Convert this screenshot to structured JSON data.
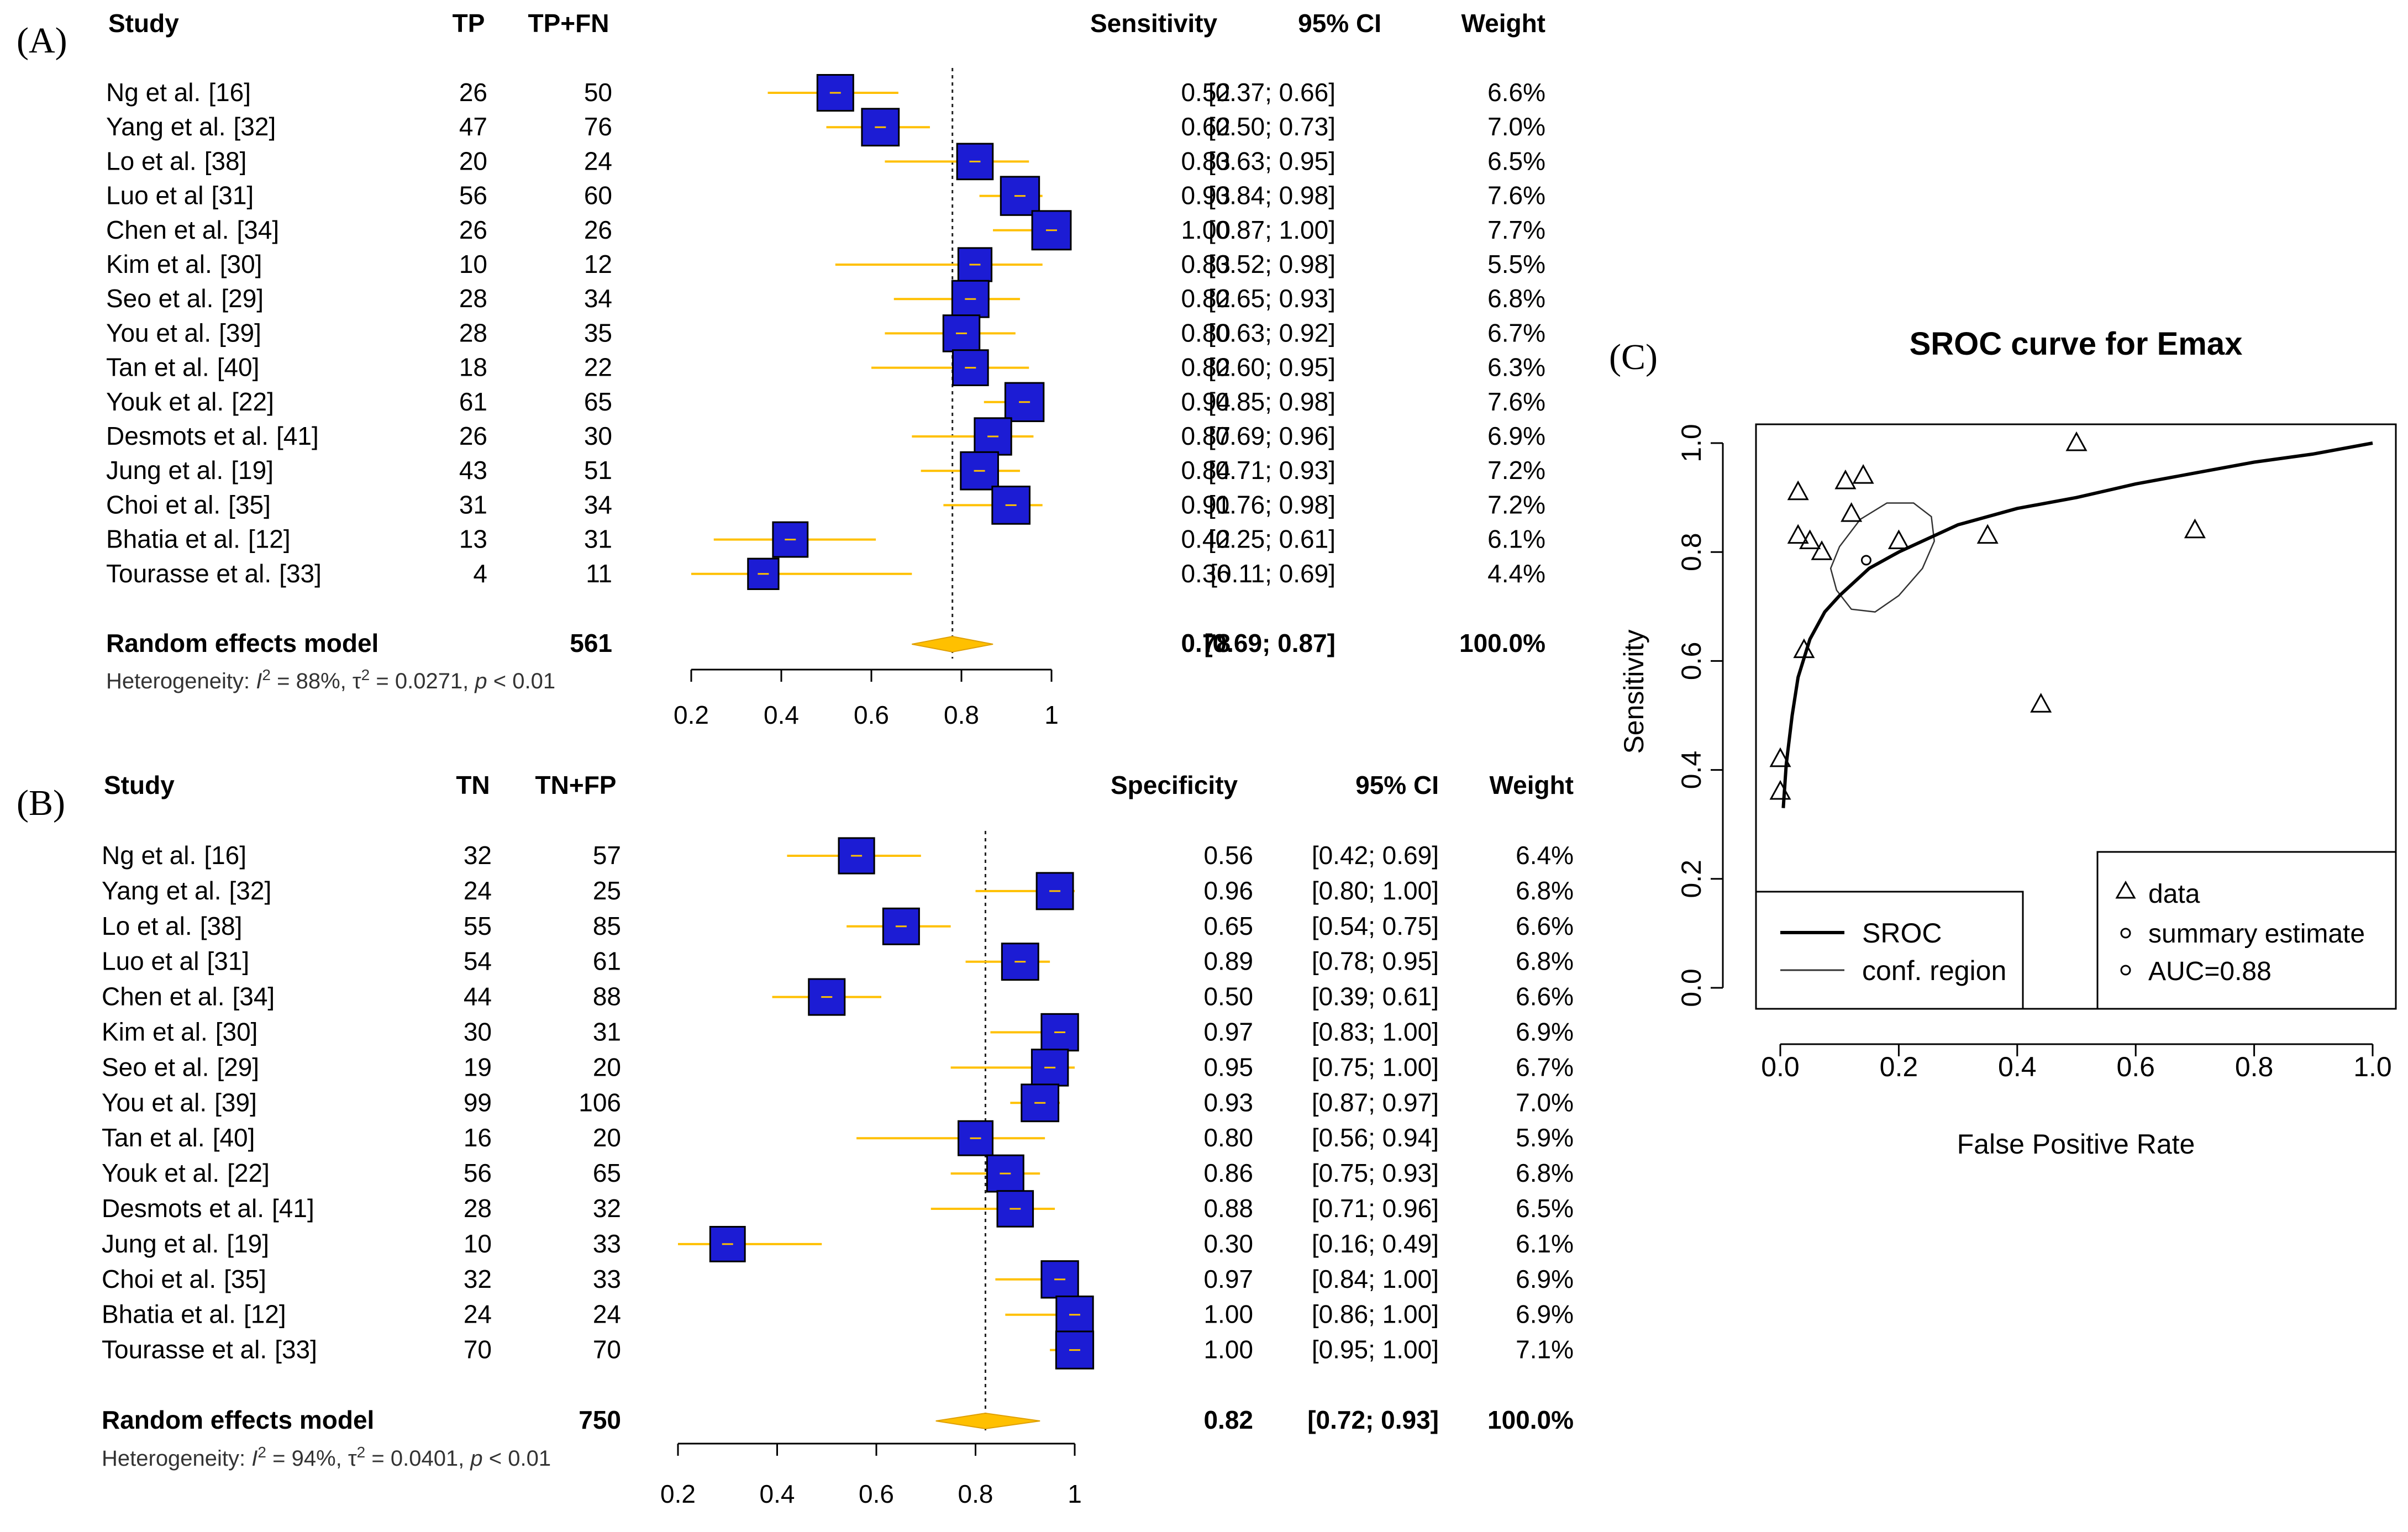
{
  "chart_data": [
    {
      "type": "forest",
      "panel_label": "(A)",
      "headers": {
        "study": "Study",
        "events": "TP",
        "total": "TP+FN",
        "measure": "Sensitivity",
        "ci": "95% CI",
        "weight": "Weight"
      },
      "xlim": [
        0.2,
        1
      ],
      "ticks": [
        0.2,
        0.4,
        0.6,
        0.8,
        1
      ],
      "tick_labels": [
        "0.2",
        "0.4",
        "0.6",
        "0.8",
        "1"
      ],
      "reference_line": 0.78,
      "studies": [
        {
          "name": "Ng et al.",
          "ref": "[16]",
          "events": "26",
          "total": "50",
          "est": "0.52",
          "lo": "0.37",
          "hi": "0.66",
          "ci": "[0.37; 0.66]",
          "weight": "6.6%"
        },
        {
          "name": "Yang et al.",
          "ref": "[32]",
          "events": "47",
          "total": "76",
          "est": "0.62",
          "lo": "0.50",
          "hi": "0.73",
          "ci": "[0.50; 0.73]",
          "weight": "7.0%"
        },
        {
          "name": "Lo et al.",
          "ref": "[38]",
          "events": "20",
          "total": "24",
          "est": "0.83",
          "lo": "0.63",
          "hi": "0.95",
          "ci": "[0.63; 0.95]",
          "weight": "6.5%"
        },
        {
          "name": "Luo et al",
          "ref": "[31]",
          "events": "56",
          "total": "60",
          "est": "0.93",
          "lo": "0.84",
          "hi": "0.98",
          "ci": "[0.84; 0.98]",
          "weight": "7.6%"
        },
        {
          "name": "Chen et al.",
          "ref": "[34]",
          "events": "26",
          "total": "26",
          "est": "1.00",
          "lo": "0.87",
          "hi": "1.00",
          "ci": "[0.87; 1.00]",
          "weight": "7.7%"
        },
        {
          "name": "Kim et al.",
          "ref": "[30]",
          "events": "10",
          "total": "12",
          "est": "0.83",
          "lo": "0.52",
          "hi": "0.98",
          "ci": "[0.52; 0.98]",
          "weight": "5.5%"
        },
        {
          "name": "Seo et al.",
          "ref": "[29]",
          "events": "28",
          "total": "34",
          "est": "0.82",
          "lo": "0.65",
          "hi": "0.93",
          "ci": "[0.65; 0.93]",
          "weight": "6.8%"
        },
        {
          "name": "You et al.",
          "ref": "[39]",
          "events": "28",
          "total": "35",
          "est": "0.80",
          "lo": "0.63",
          "hi": "0.92",
          "ci": "[0.63; 0.92]",
          "weight": "6.7%"
        },
        {
          "name": "Tan et al.",
          "ref": "[40]",
          "events": "18",
          "total": "22",
          "est": "0.82",
          "lo": "0.60",
          "hi": "0.95",
          "ci": "[0.60; 0.95]",
          "weight": "6.3%"
        },
        {
          "name": "Youk et al.",
          "ref": "[22]",
          "events": "61",
          "total": "65",
          "est": "0.94",
          "lo": "0.85",
          "hi": "0.98",
          "ci": "[0.85; 0.98]",
          "weight": "7.6%"
        },
        {
          "name": "Desmots et al.",
          "ref": "[41]",
          "events": "26",
          "total": "30",
          "est": "0.87",
          "lo": "0.69",
          "hi": "0.96",
          "ci": "[0.69; 0.96]",
          "weight": "6.9%"
        },
        {
          "name": "Jung et al.",
          "ref": "[19]",
          "events": "43",
          "total": "51",
          "est": "0.84",
          "lo": "0.71",
          "hi": "0.93",
          "ci": "[0.71; 0.93]",
          "weight": "7.2%"
        },
        {
          "name": "Choi et al.",
          "ref": "[35]",
          "events": "31",
          "total": "34",
          "est": "0.91",
          "lo": "0.76",
          "hi": "0.98",
          "ci": "[0.76; 0.98]",
          "weight": "7.2%"
        },
        {
          "name": "Bhatia et al.",
          "ref": "[12]",
          "events": "13",
          "total": "31",
          "est": "0.42",
          "lo": "0.25",
          "hi": "0.61",
          "ci": "[0.25; 0.61]",
          "weight": "6.1%"
        },
        {
          "name": "Tourasse et al.",
          "ref": "[33]",
          "events": "4",
          "total": "11",
          "est": "0.36",
          "lo": "0.11",
          "hi": "0.69",
          "ci": "[0.11; 0.69]",
          "weight": "4.4%"
        }
      ],
      "pooled": {
        "label": "Random effects model",
        "total": "561",
        "est": "0.78",
        "lo": "0.69",
        "hi": "0.87",
        "ci": "[0.69; 0.87]",
        "weight": "100.0%"
      },
      "heterogeneity": {
        "prefix": "Heterogeneity: ",
        "i2": "I",
        "i2_value": " = 88%, ",
        "tau2": "τ",
        "tau2_value": " = 0.0271, ",
        "p": "p",
        "p_value": " < 0.01",
        "sup": "2"
      }
    },
    {
      "type": "forest",
      "panel_label": "(B)",
      "headers": {
        "study": "Study",
        "events": "TN",
        "total": "TN+FP",
        "measure": "Specificity",
        "ci": "95% CI",
        "weight": "Weight"
      },
      "xlim": [
        0.2,
        1
      ],
      "ticks": [
        0.2,
        0.4,
        0.6,
        0.8,
        1
      ],
      "tick_labels": [
        "0.2",
        "0.4",
        "0.6",
        "0.8",
        "1"
      ],
      "reference_line": 0.82,
      "studies": [
        {
          "name": "Ng et al.",
          "ref": "[16]",
          "events": "32",
          "total": "57",
          "est": "0.56",
          "lo": "0.42",
          "hi": "0.69",
          "ci": "[0.42; 0.69]",
          "weight": "6.4%"
        },
        {
          "name": "Yang et al.",
          "ref": "[32]",
          "events": "24",
          "total": "25",
          "est": "0.96",
          "lo": "0.80",
          "hi": "1.00",
          "ci": "[0.80; 1.00]",
          "weight": "6.8%"
        },
        {
          "name": "Lo et al.",
          "ref": "[38]",
          "events": "55",
          "total": "85",
          "est": "0.65",
          "lo": "0.54",
          "hi": "0.75",
          "ci": "[0.54; 0.75]",
          "weight": "6.6%"
        },
        {
          "name": "Luo et al",
          "ref": "[31]",
          "events": "54",
          "total": "61",
          "est": "0.89",
          "lo": "0.78",
          "hi": "0.95",
          "ci": "[0.78; 0.95]",
          "weight": "6.8%"
        },
        {
          "name": "Chen et al.",
          "ref": "[34]",
          "events": "44",
          "total": "88",
          "est": "0.50",
          "lo": "0.39",
          "hi": "0.61",
          "ci": "[0.39; 0.61]",
          "weight": "6.6%"
        },
        {
          "name": "Kim et al.",
          "ref": "[30]",
          "events": "30",
          "total": "31",
          "est": "0.97",
          "lo": "0.83",
          "hi": "1.00",
          "ci": "[0.83; 1.00]",
          "weight": "6.9%"
        },
        {
          "name": "Seo et al.",
          "ref": "[29]",
          "events": "19",
          "total": "20",
          "est": "0.95",
          "lo": "0.75",
          "hi": "1.00",
          "ci": "[0.75; 1.00]",
          "weight": "6.7%"
        },
        {
          "name": "You et al.",
          "ref": "[39]",
          "events": "99",
          "total": "106",
          "est": "0.93",
          "lo": "0.87",
          "hi": "0.97",
          "ci": "[0.87; 0.97]",
          "weight": "7.0%"
        },
        {
          "name": "Tan et al.",
          "ref": "[40]",
          "events": "16",
          "total": "20",
          "est": "0.80",
          "lo": "0.56",
          "hi": "0.94",
          "ci": "[0.56; 0.94]",
          "weight": "5.9%"
        },
        {
          "name": "Youk et al.",
          "ref": "[22]",
          "events": "56",
          "total": "65",
          "est": "0.86",
          "lo": "0.75",
          "hi": "0.93",
          "ci": "[0.75; 0.93]",
          "weight": "6.8%"
        },
        {
          "name": "Desmots et al.",
          "ref": "[41]",
          "events": "28",
          "total": "32",
          "est": "0.88",
          "lo": "0.71",
          "hi": "0.96",
          "ci": "[0.71; 0.96]",
          "weight": "6.5%"
        },
        {
          "name": "Jung et al.",
          "ref": "[19]",
          "events": "10",
          "total": "33",
          "est": "0.30",
          "lo": "0.16",
          "hi": "0.49",
          "ci": "[0.16; 0.49]",
          "weight": "6.1%"
        },
        {
          "name": "Choi et al.",
          "ref": "[35]",
          "events": "32",
          "total": "33",
          "est": "0.97",
          "lo": "0.84",
          "hi": "1.00",
          "ci": "[0.84; 1.00]",
          "weight": "6.9%"
        },
        {
          "name": "Bhatia et al.",
          "ref": "[12]",
          "events": "24",
          "total": "24",
          "est": "1.00",
          "lo": "0.86",
          "hi": "1.00",
          "ci": "[0.86; 1.00]",
          "weight": "6.9%"
        },
        {
          "name": "Tourasse et al.",
          "ref": "[33]",
          "events": "70",
          "total": "70",
          "est": "1.00",
          "lo": "0.95",
          "hi": "1.00",
          "ci": "[0.95; 1.00]",
          "weight": "7.1%"
        }
      ],
      "pooled": {
        "label": "Random effects model",
        "total": "750",
        "est": "0.82",
        "lo": "0.72",
        "hi": "0.93",
        "ci": "[0.72; 0.93]",
        "weight": "100.0%"
      },
      "heterogeneity": {
        "prefix": "Heterogeneity: ",
        "i2": "I",
        "i2_value": " = 94%, ",
        "tau2": "τ",
        "tau2_value": " = 0.0401, ",
        "p": "p",
        "p_value": " < 0.01",
        "sup": "2"
      }
    },
    {
      "type": "scatter",
      "panel_label": "(C)",
      "title": "SROC curve for Emax",
      "xlabel": "False Positive Rate",
      "ylabel": "Sensitivity",
      "xlim": [
        0,
        1
      ],
      "ylim": [
        0,
        1
      ],
      "ticks": [
        0.0,
        0.2,
        0.4,
        0.6,
        0.8,
        1.0
      ],
      "tick_labels": [
        "0.0",
        "0.2",
        "0.4",
        "0.6",
        "0.8",
        "1.0"
      ],
      "points": [
        {
          "x": 0.44,
          "y": 0.52
        },
        {
          "x": 0.04,
          "y": 0.62
        },
        {
          "x": 0.35,
          "y": 0.83
        },
        {
          "x": 0.11,
          "y": 0.93
        },
        {
          "x": 0.5,
          "y": 1.0
        },
        {
          "x": 0.03,
          "y": 0.83
        },
        {
          "x": 0.05,
          "y": 0.82
        },
        {
          "x": 0.07,
          "y": 0.8
        },
        {
          "x": 0.2,
          "y": 0.82
        },
        {
          "x": 0.14,
          "y": 0.94
        },
        {
          "x": 0.12,
          "y": 0.87
        },
        {
          "x": 0.7,
          "y": 0.84
        },
        {
          "x": 0.03,
          "y": 0.91
        },
        {
          "x": 0.0,
          "y": 0.42
        },
        {
          "x": 0.0,
          "y": 0.36
        }
      ],
      "summary_estimate": {
        "x": 0.145,
        "y": 0.785
      },
      "auc": 0.88,
      "sroc_curve": [
        [
          0.005,
          0.33
        ],
        [
          0.01,
          0.41
        ],
        [
          0.02,
          0.5
        ],
        [
          0.03,
          0.57
        ],
        [
          0.05,
          0.64
        ],
        [
          0.075,
          0.69
        ],
        [
          0.1,
          0.72
        ],
        [
          0.15,
          0.77
        ],
        [
          0.2,
          0.8
        ],
        [
          0.3,
          0.85
        ],
        [
          0.4,
          0.88
        ],
        [
          0.5,
          0.9
        ],
        [
          0.6,
          0.925
        ],
        [
          0.7,
          0.945
        ],
        [
          0.8,
          0.965
        ],
        [
          0.9,
          0.98
        ],
        [
          1.0,
          1.0
        ]
      ],
      "conf_region": [
        [
          0.095,
          0.73
        ],
        [
          0.12,
          0.695
        ],
        [
          0.16,
          0.69
        ],
        [
          0.2,
          0.72
        ],
        [
          0.24,
          0.77
        ],
        [
          0.26,
          0.82
        ],
        [
          0.255,
          0.865
        ],
        [
          0.225,
          0.89
        ],
        [
          0.18,
          0.89
        ],
        [
          0.135,
          0.86
        ],
        [
          0.1,
          0.81
        ],
        [
          0.085,
          0.77
        ],
        [
          0.095,
          0.73
        ]
      ],
      "legend_left": {
        "items": [
          "SROC",
          "conf. region"
        ]
      },
      "legend_right": {
        "items": [
          "data",
          "summary estimate",
          "AUC=0.88"
        ]
      }
    }
  ]
}
